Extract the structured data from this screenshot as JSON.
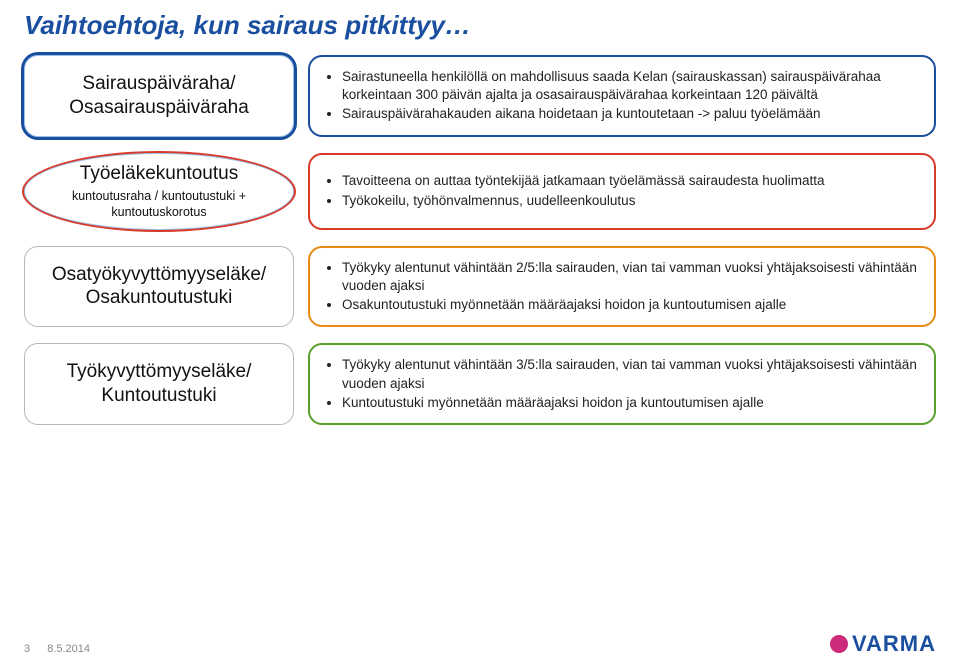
{
  "title": {
    "text": "Vaihtoehtoja, kun sairaus pitkittyy…",
    "color": "#1a4fa0"
  },
  "rows": [
    {
      "left": {
        "shape": "rounded",
        "border_thin": "#9fc2e8",
        "border_thick": "#1a4fa0",
        "thick_width": 3,
        "label": "Sairauspäiväraha/\nOsasairauspäiväraha",
        "sub": ""
      },
      "right": {
        "border": "#1a4fa0",
        "bullets": [
          "Sairastuneella henkilöllä on mahdollisuus saada Kelan (sairauskassan) sairauspäivärahaa korkeintaan 300 päivän ajalta ja osasairauspäivärahaa korkeintaan 120 päivältä",
          "Sairauspäivärahakauden aikana hoidetaan ja kuntoutetaan -> paluu työelämään"
        ]
      }
    },
    {
      "left": {
        "shape": "ellipse",
        "border_thin": "#9fc2e8",
        "border_thick": "#d83a2a",
        "thick_width": 2,
        "label": "Työeläkekuntoutus",
        "sub": "kuntoutusraha / kuntoutustuki + kuntoutuskorotus"
      },
      "right": {
        "border": "#d83a2a",
        "bullets": [
          "Tavoitteena on auttaa työntekijää jatkamaan työelämässä sairaudesta huolimatta",
          "Työkokeilu, työhönvalmennus, uudelleenkoulutus"
        ]
      }
    },
    {
      "left": {
        "shape": "rounded",
        "border_thin": "#b8b8b8",
        "border_thick": "",
        "thick_width": 0,
        "label": "Osatyökyvyttömyyseläke/\nOsakuntoutustuki",
        "sub": ""
      },
      "right": {
        "border": "#e88b16",
        "bullets": [
          "Työkyky alentunut vähintään 2/5:lla sairauden, vian tai vamman vuoksi yhtäjaksoisesti vähintään vuoden ajaksi",
          "Osakuntoutustuki myönnetään määräajaksi hoidon ja kuntoutumisen ajalle"
        ]
      }
    },
    {
      "left": {
        "shape": "rounded",
        "border_thin": "#b8b8b8",
        "border_thick": "",
        "thick_width": 0,
        "label": "Työkyvyttömyyseläke/\nKuntoutustuki",
        "sub": ""
      },
      "right": {
        "border": "#5aa02c",
        "bullets": [
          "Työkyky alentunut vähintään 3/5:lla sairauden, vian tai vamman vuoksi yhtäjaksoisesti vähintään vuoden ajaksi",
          "Kuntoutustuki myönnetään määräajaksi hoidon ja kuntoutumisen ajalle"
        ]
      }
    }
  ],
  "footer": {
    "page": "3",
    "date": "8.5.2014",
    "color": "#888888"
  },
  "brand": {
    "name": "VARMA",
    "color": "#1a4fa0",
    "dot_color": "#cc2a7a"
  }
}
